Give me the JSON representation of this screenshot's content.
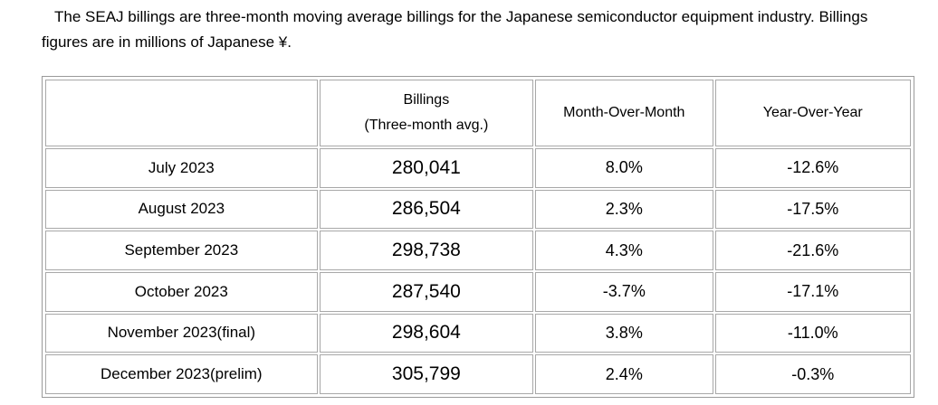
{
  "intro": "The SEAJ billings are three-month moving average billings for the Japanese semiconductor equipment industry. Billings figures are in millions of Japanese ¥.",
  "table": {
    "headers": {
      "period": "",
      "billings_line1": "Billings",
      "billings_line2": "(Three-month avg.)",
      "mom": "Month-Over-Month",
      "yoy": "Year-Over-Year"
    },
    "rows": [
      {
        "period": "July 2023",
        "billings": "280,041",
        "mom": "8.0%",
        "yoy": "-12.6%"
      },
      {
        "period": "August 2023",
        "billings": "286,504",
        "mom": "2.3%",
        "yoy": "-17.5%"
      },
      {
        "period": "September 2023",
        "billings": "298,738",
        "mom": "4.3%",
        "yoy": "-21.6%"
      },
      {
        "period": "October 2023",
        "billings": "287,540",
        "mom": "-3.7%",
        "yoy": "-17.1%"
      },
      {
        "period": "November 2023(final)",
        "billings": "298,604",
        "mom": "3.8%",
        "yoy": "-11.0%"
      },
      {
        "period": "December 2023(prelim)",
        "billings": "305,799",
        "mom": "2.4%",
        "yoy": "-0.3%"
      }
    ]
  }
}
